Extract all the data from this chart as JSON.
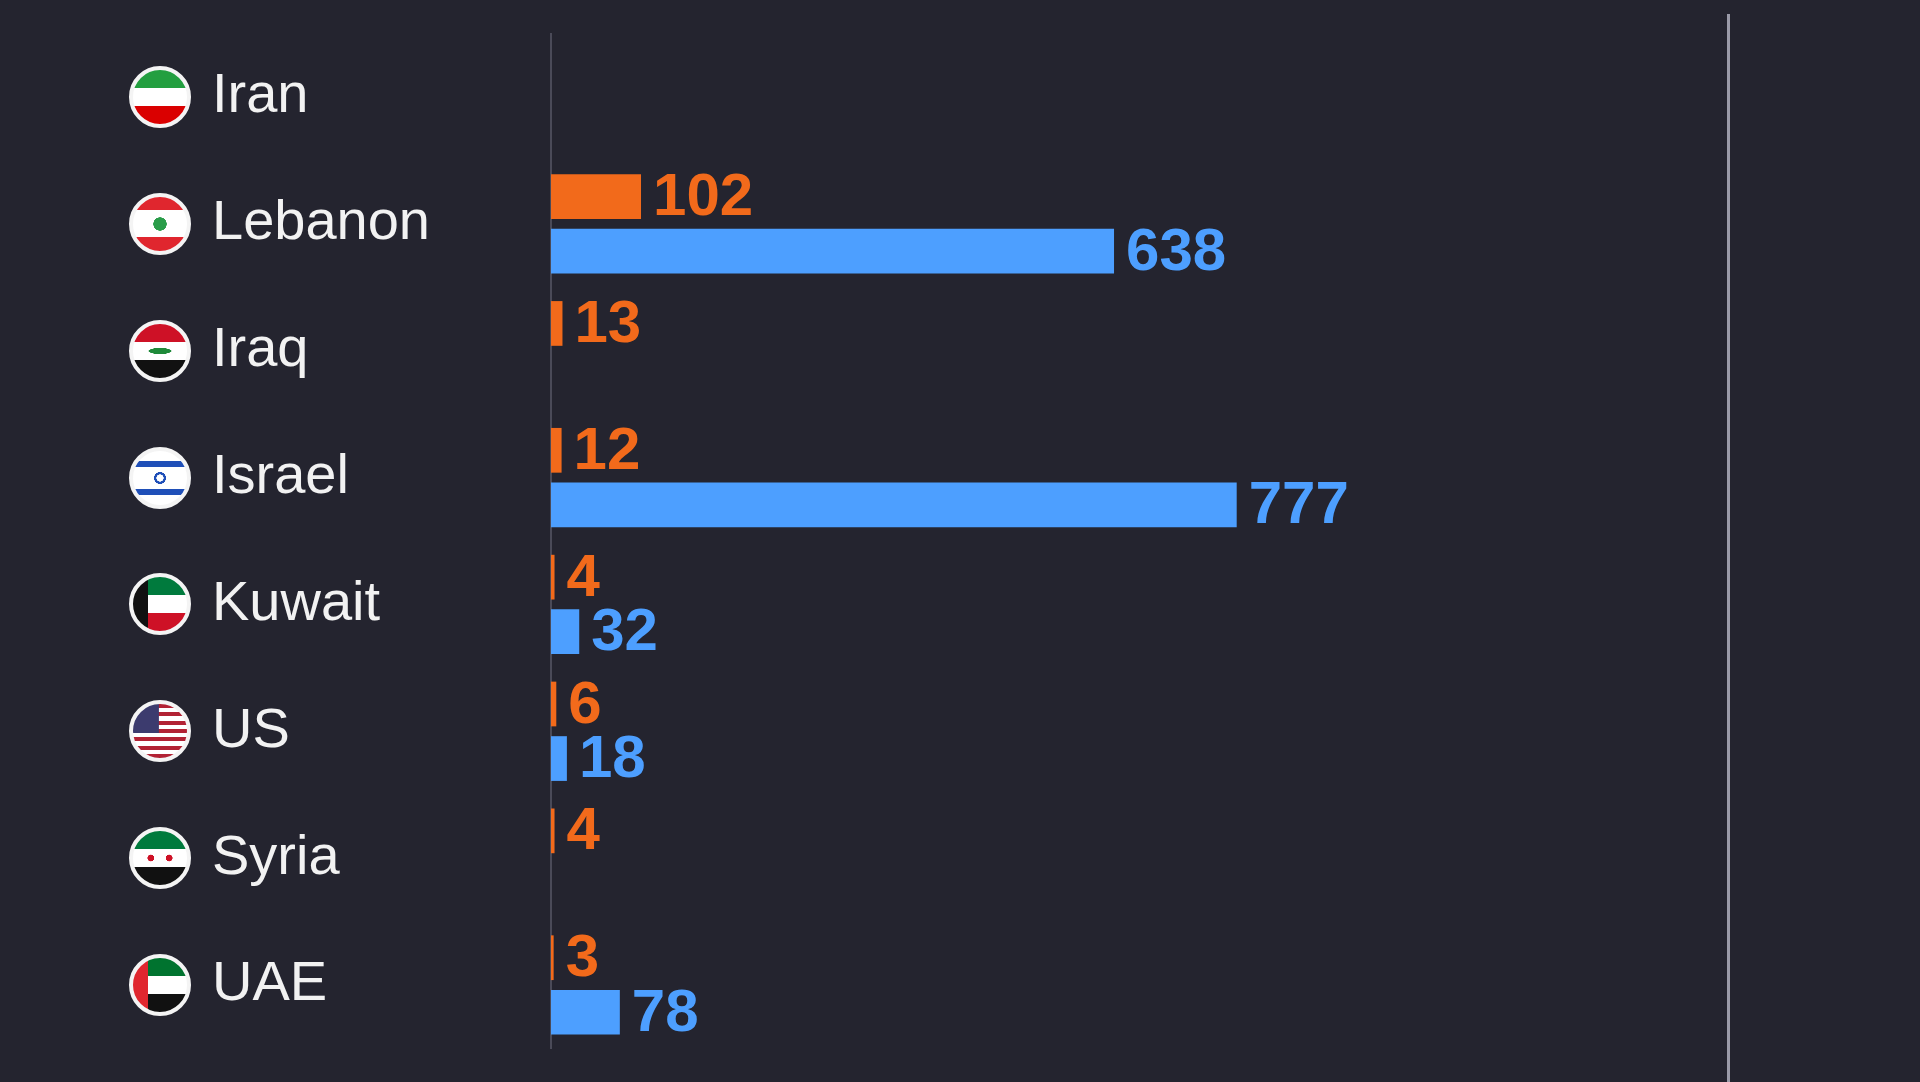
{
  "chart_data": {
    "type": "bar",
    "orientation": "horizontal",
    "categories": [
      "Iran",
      "Lebanon",
      "Iraq",
      "Israel",
      "Kuwait",
      "US",
      "Syria",
      "UAE"
    ],
    "series": [
      {
        "color": "#f26a1b",
        "values": [
          null,
          102,
          13,
          12,
          4,
          6,
          4,
          3
        ]
      },
      {
        "color": "#4d9fff",
        "values": [
          null,
          638,
          null,
          777,
          32,
          18,
          null,
          78
        ]
      }
    ],
    "data_labels": true,
    "tick_labels": "y"
  }
}
